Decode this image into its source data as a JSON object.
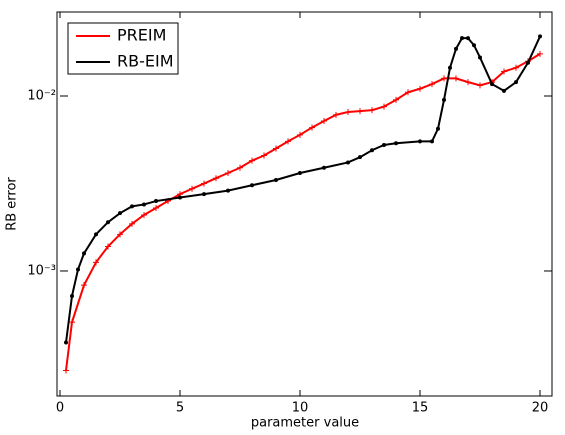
{
  "chart_data": {
    "type": "line",
    "xlabel": "parameter value",
    "ylabel": "RB error",
    "xlim": [
      0,
      20.5
    ],
    "xticks": [
      0,
      5,
      10,
      15,
      20
    ],
    "ylim": [
      0.000193,
      0.0302
    ],
    "yscale": "log",
    "yticks": [
      {
        "value": 0.001,
        "label": "10⁻³"
      },
      {
        "value": 0.01,
        "label": "10⁻²"
      }
    ],
    "legend": "upper left",
    "series": [
      {
        "name": "PREIM",
        "color": "#ff0000",
        "marker": "plus",
        "x": [
          0.25,
          0.5,
          1,
          1.5,
          2,
          2.5,
          3,
          3.5,
          4,
          4.5,
          5,
          5.5,
          6,
          6.5,
          7,
          7.5,
          8,
          8.5,
          9,
          9.5,
          10,
          10.5,
          11,
          11.5,
          12,
          12.5,
          13,
          13.5,
          14,
          14.5,
          15,
          15.5,
          16,
          16.5,
          17,
          17.5,
          18,
          18.5,
          19,
          19.5,
          20
        ],
        "values": [
          0.00027,
          0.00051,
          0.00083,
          0.00112,
          0.00138,
          0.00162,
          0.00186,
          0.00209,
          0.00229,
          0.00251,
          0.00275,
          0.00295,
          0.00316,
          0.00339,
          0.00363,
          0.00389,
          0.00427,
          0.00457,
          0.00501,
          0.0055,
          0.006,
          0.0066,
          0.0072,
          0.0078,
          0.0081,
          0.0082,
          0.0083,
          0.0087,
          0.0095,
          0.0105,
          0.011,
          0.0117,
          0.0126,
          0.0126,
          0.012,
          0.0115,
          0.012,
          0.0138,
          0.0145,
          0.0158,
          0.0174
        ]
      },
      {
        "name": "RB-EIM",
        "color": "#000000",
        "marker": "dot",
        "x": [
          0.25,
          0.5,
          0.75,
          1,
          1.5,
          2,
          2.5,
          3,
          3.5,
          4,
          5,
          6,
          7,
          8,
          9,
          10,
          11,
          12,
          12.5,
          13,
          13.5,
          14,
          15,
          15.5,
          15.75,
          16,
          16.25,
          16.5,
          16.75,
          17,
          17.25,
          17.5,
          18,
          18.5,
          19,
          19.5,
          20
        ],
        "values": [
          0.00039,
          0.00072,
          0.00102,
          0.00126,
          0.00162,
          0.0019,
          0.00214,
          0.00234,
          0.0024,
          0.00251,
          0.00263,
          0.00275,
          0.00288,
          0.00309,
          0.00331,
          0.00363,
          0.00389,
          0.00417,
          0.00447,
          0.0049,
          0.00525,
          0.00537,
          0.0055,
          0.0055,
          0.0065,
          0.0095,
          0.0145,
          0.0186,
          0.0214,
          0.0214,
          0.0195,
          0.0166,
          0.0117,
          0.0107,
          0.012,
          0.0155,
          0.0219
        ]
      }
    ]
  }
}
